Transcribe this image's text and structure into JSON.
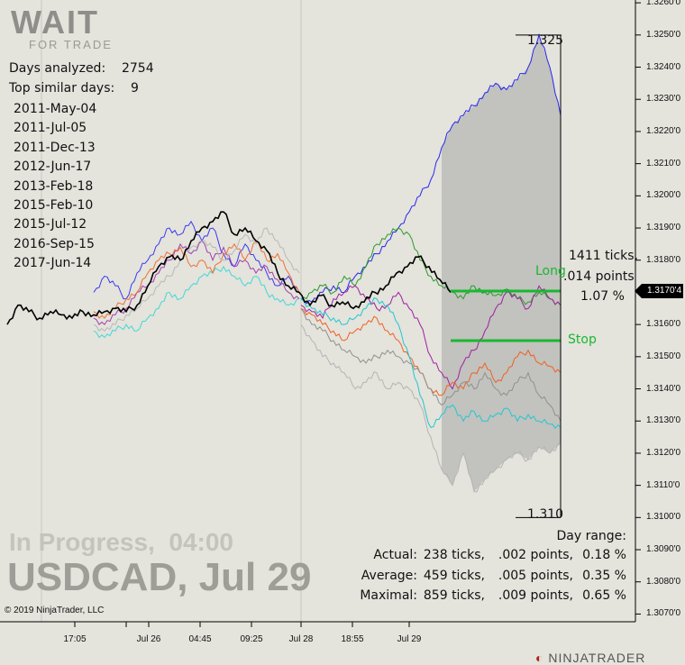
{
  "logo": {
    "main": "WAIT",
    "sub": "FOR TRADE"
  },
  "stats": {
    "days_analyzed_label": "Days analyzed:",
    "days_analyzed": "2754",
    "top_similar_label": "Top similar days:",
    "top_similar": "9"
  },
  "similar_days": [
    "2011-May-04",
    "2011-Jul-05",
    "2011-Dec-13",
    "2012-Jun-17",
    "2013-Feb-18",
    "2015-Feb-10",
    "2015-Jul-12",
    "2016-Sep-15",
    "2017-Jun-14"
  ],
  "status": {
    "in_progress": "In Progress,  04:00",
    "title": "USDCAD, Jul 29"
  },
  "copyright": "© 2019 NinjaTrader, LLC",
  "brand": "NINJATRADER",
  "range_box": {
    "high": "1.325",
    "low": "1.310",
    "ticks": "1411 ticks,",
    "points": ".014 points",
    "percent": "1.07 %"
  },
  "levels": {
    "long_label": "Long",
    "long_price": 1.31704,
    "stop_label": "Stop",
    "stop_price": 1.3155,
    "color": "#18b830"
  },
  "day_range": {
    "header": "Day range:",
    "rows": [
      {
        "label": "Actual:",
        "ticks": "238 ticks,",
        "points": ".002 points,",
        "pct": "0.18 %"
      },
      {
        "label": "Average:",
        "ticks": "459 ticks,",
        "points": ".005 points,",
        "pct": "0.35 %"
      },
      {
        "label": "Maximal:",
        "ticks": "859 ticks,",
        "points": ".009 points,",
        "pct": "0.65 %"
      }
    ]
  },
  "chart_data": {
    "type": "line",
    "symbol": "USDCAD",
    "current_price": "1.3170'4",
    "y_ticks": [
      "1.3260'0",
      "1.3250'0",
      "1.3240'0",
      "1.3230'0",
      "1.3220'0",
      "1.3210'0",
      "1.3200'0",
      "1.3190'0",
      "1.3180'0",
      "1.3160'0",
      "1.3150'0",
      "1.3140'0",
      "1.3130'0",
      "1.3120'0",
      "1.3110'0",
      "1.3100'0",
      "1.3090'0",
      "1.3080'0",
      "1.3070'0"
    ],
    "ylim": [
      1.3066,
      1.3262
    ],
    "x_ticks": [
      "17:05",
      "Jul 26",
      "04:45",
      "09:25",
      "Jul 28",
      "18:55",
      "Jul 29"
    ],
    "actual": {
      "color": "#000000",
      "values": [
        1.316,
        1.3166,
        1.3164,
        1.3162,
        1.3164,
        1.3163,
        1.3162,
        1.3164,
        1.3163,
        1.3164,
        1.3165,
        1.3164,
        1.3166,
        1.3172,
        1.3178,
        1.3181,
        1.318,
        1.3186,
        1.319,
        1.3192,
        1.3195,
        1.3188,
        1.319,
        1.3186,
        1.3183,
        1.3176,
        1.3172,
        1.317,
        1.3166,
        1.3169,
        1.3166,
        1.3167,
        1.3165,
        1.3167,
        1.317,
        1.3172,
        1.3176,
        1.3178,
        1.3181,
        1.3178,
        1.3174,
        1.317
      ]
    },
    "history": [
      {
        "color": "#3a3af0",
        "values": [
          1.317,
          1.3175,
          1.3172,
          1.3168,
          1.3176,
          1.318,
          1.3185,
          1.319,
          1.3188,
          1.3192,
          1.3186,
          1.319,
          1.3182,
          1.3178,
          1.3185,
          1.318,
          1.3176,
          1.3172,
          1.3175,
          1.317
        ]
      },
      {
        "color": "#40d8d8",
        "values": [
          1.3158,
          1.3156,
          1.3158,
          1.316,
          1.3158,
          1.3162,
          1.3165,
          1.317,
          1.3168,
          1.3172,
          1.3175,
          1.3176,
          1.3178,
          1.3175,
          1.3172,
          1.3175,
          1.317,
          1.3168,
          1.3166,
          1.3168
        ]
      },
      {
        "color": "#a040b0",
        "values": [
          1.3162,
          1.316,
          1.3163,
          1.3165,
          1.317,
          1.3172,
          1.3176,
          1.318,
          1.3185,
          1.3182,
          1.3186,
          1.318,
          1.3184,
          1.3178,
          1.318,
          1.3176,
          1.3178,
          1.3174,
          1.317,
          1.3168
        ]
      },
      {
        "color": "#f07030",
        "values": [
          1.3164,
          1.3162,
          1.3165,
          1.3168,
          1.317,
          1.3176,
          1.318,
          1.3182,
          1.3184,
          1.3178,
          1.318,
          1.3176,
          1.3182,
          1.3185,
          1.318,
          1.3186,
          1.318,
          1.3182,
          1.3176,
          1.317
        ]
      },
      {
        "color": "#b8b8b8",
        "values": [
          1.316,
          1.3158,
          1.316,
          1.3163,
          1.3165,
          1.3168,
          1.3172,
          1.3175,
          1.318,
          1.3184,
          1.3186,
          1.3184,
          1.318,
          1.3183,
          1.3188,
          1.3185,
          1.319,
          1.3186,
          1.318,
          1.3176
        ]
      }
    ],
    "projections": [
      {
        "color": "#2828f0",
        "values": [
          1.3168,
          1.3167,
          1.317,
          1.3172,
          1.317,
          1.3175,
          1.3178,
          1.3182,
          1.3186,
          1.319,
          1.3195,
          1.32,
          1.3205,
          1.3215,
          1.3222,
          1.3225,
          1.3228,
          1.3232,
          1.3235,
          1.3233,
          1.3236,
          1.324,
          1.325,
          1.324,
          1.3225
        ]
      },
      {
        "color": "#2a9a2a",
        "values": [
          1.3168,
          1.317,
          1.3172,
          1.317,
          1.3175,
          1.3172,
          1.3178,
          1.3185,
          1.3188,
          1.319,
          1.3188,
          1.318,
          1.3175,
          1.3172,
          1.317,
          1.3168,
          1.3172,
          1.317,
          1.3169,
          1.3171,
          1.3168,
          1.3167,
          1.317,
          1.3168,
          1.3166
        ]
      },
      {
        "color": "#a020a0",
        "values": [
          1.3166,
          1.3164,
          1.3162,
          1.3168,
          1.317,
          1.3172,
          1.3168,
          1.3165,
          1.3166,
          1.317,
          1.3165,
          1.316,
          1.315,
          1.3145,
          1.314,
          1.3148,
          1.3152,
          1.3158,
          1.3165,
          1.317,
          1.3168,
          1.3165,
          1.3172,
          1.3168,
          1.3166
        ]
      },
      {
        "color": "#f06020",
        "values": [
          1.3165,
          1.3163,
          1.316,
          1.3158,
          1.3155,
          1.3158,
          1.316,
          1.3162,
          1.3158,
          1.3155,
          1.315,
          1.3145,
          1.314,
          1.3138,
          1.3142,
          1.314,
          1.3145,
          1.3148,
          1.3142,
          1.3145,
          1.315,
          1.3152,
          1.3148,
          1.3147,
          1.3145
        ]
      },
      {
        "color": "#20c8d0",
        "values": [
          1.3168,
          1.3165,
          1.3163,
          1.3162,
          1.316,
          1.3162,
          1.3165,
          1.3168,
          1.3166,
          1.316,
          1.315,
          1.3138,
          1.3128,
          1.3132,
          1.3135,
          1.313,
          1.3133,
          1.313,
          1.3132,
          1.3134,
          1.313,
          1.3132,
          1.313,
          1.3129,
          1.3128
        ]
      },
      {
        "color": "#909090",
        "values": [
          1.3165,
          1.316,
          1.3158,
          1.3155,
          1.3152,
          1.315,
          1.3148,
          1.315,
          1.3152,
          1.315,
          1.3148,
          1.3145,
          1.314,
          1.3135,
          1.3138,
          1.3142,
          1.314,
          1.3145,
          1.314,
          1.3138,
          1.3142,
          1.3145,
          1.3138,
          1.3135,
          1.313
        ]
      },
      {
        "color": "#b4b4b4",
        "values": [
          1.316,
          1.3155,
          1.315,
          1.3148,
          1.3145,
          1.314,
          1.3142,
          1.3145,
          1.314,
          1.3142,
          1.314,
          1.3135,
          1.3125,
          1.3115,
          1.311,
          1.312,
          1.3108,
          1.3112,
          1.3115,
          1.3118,
          1.312,
          1.3118,
          1.3122,
          1.312,
          1.3123
        ]
      }
    ]
  }
}
